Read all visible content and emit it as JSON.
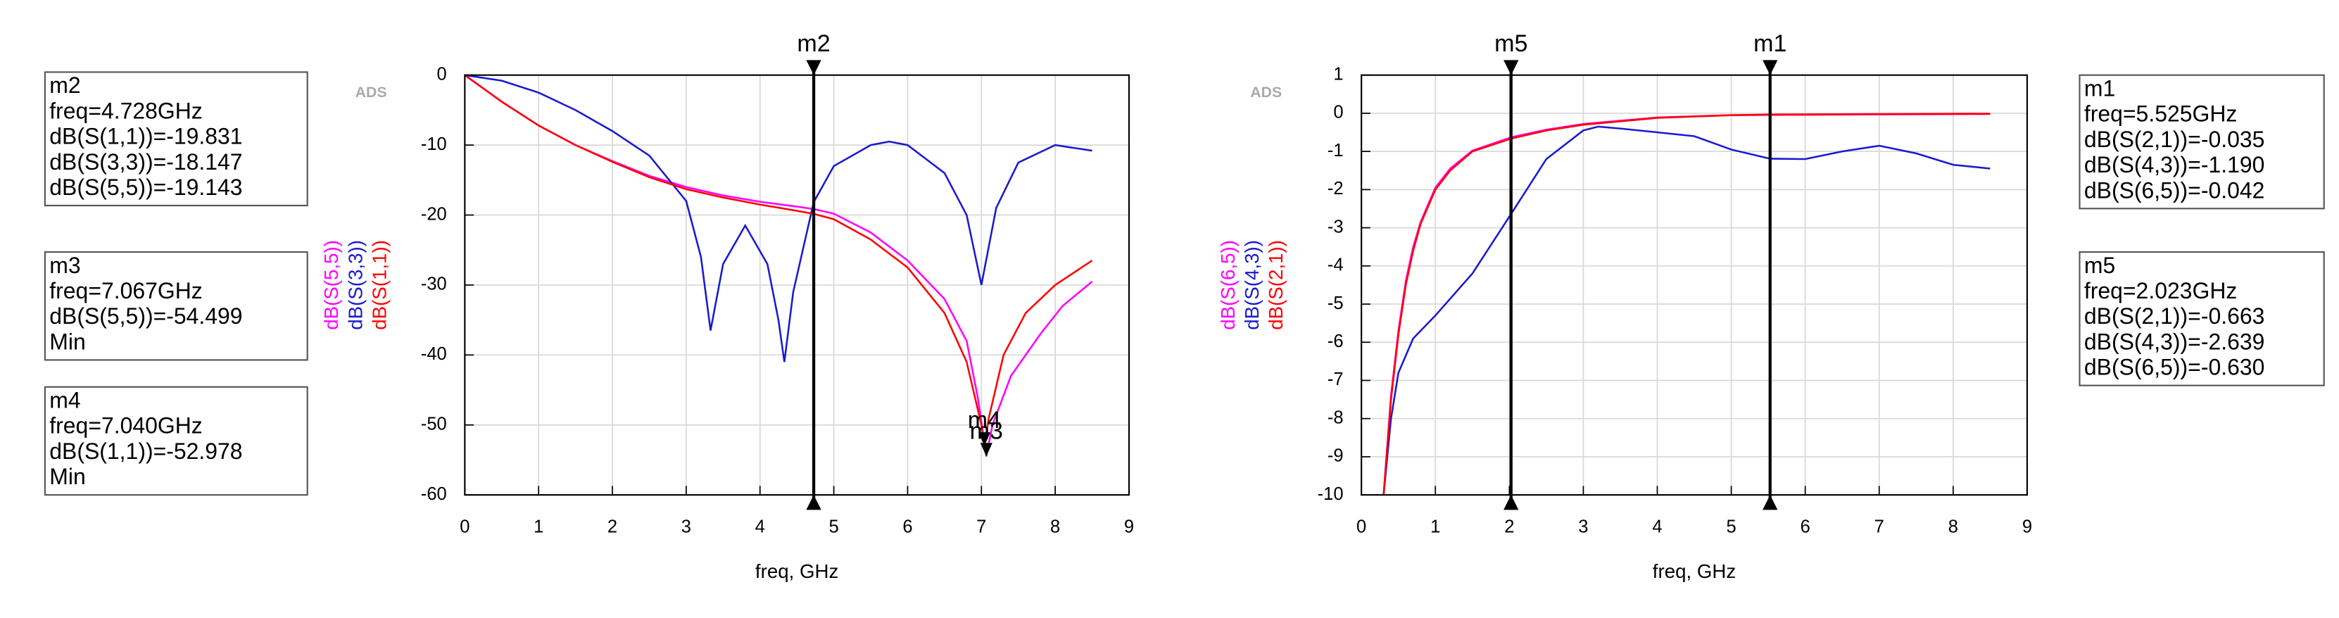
{
  "chart_data": [
    {
      "type": "line",
      "watermark": "ADS",
      "xlabel": "freq, GHz",
      "grid": true,
      "xlim": [
        0,
        9
      ],
      "xticks": [
        0,
        1,
        2,
        3,
        4,
        5,
        6,
        7,
        8,
        9
      ],
      "ylim": [
        -60,
        0
      ],
      "yticks": [
        0,
        -10,
        -20,
        -30,
        -40,
        -50,
        -60
      ],
      "series": [
        {
          "name": "dB(S(5,5))",
          "color": "#ff00ff",
          "x": [
            0,
            0.5,
            1,
            1.5,
            2,
            2.5,
            3,
            3.5,
            4,
            4.5,
            4.728,
            5,
            5.5,
            6,
            6.5,
            6.8,
            6.95,
            7.067,
            7.15,
            7.4,
            7.8,
            8.1,
            8.5
          ],
          "values": [
            0,
            -3.8,
            -7.2,
            -10,
            -12.3,
            -14.4,
            -16,
            -17.2,
            -18.1,
            -18.8,
            -19.143,
            -19.8,
            -22.5,
            -26.5,
            -32,
            -38,
            -46,
            -54.499,
            -50,
            -43,
            -37,
            -33,
            -29.5
          ]
        },
        {
          "name": "dB(S(3,3))",
          "color": "#1a1ad0",
          "x": [
            0,
            0.5,
            1,
            1.5,
            2,
            2.5,
            3,
            3.2,
            3.33,
            3.5,
            3.8,
            4.1,
            4.25,
            4.33,
            4.45,
            4.728,
            5,
            5.5,
            5.75,
            6,
            6.5,
            6.8,
            7.0,
            7.2,
            7.5,
            8,
            8.5
          ],
          "values": [
            0,
            -0.8,
            -2.5,
            -5,
            -8,
            -11.5,
            -18,
            -26,
            -36.5,
            -27,
            -21.5,
            -27,
            -35,
            -41,
            -31,
            -18.147,
            -13,
            -10,
            -9.5,
            -10,
            -14,
            -20,
            -30,
            -19,
            -12.5,
            -10,
            -10.8
          ]
        },
        {
          "name": "dB(S(1,1))",
          "color": "#ff0000",
          "x": [
            0,
            0.5,
            1,
            1.5,
            2,
            2.5,
            3,
            3.5,
            4,
            4.5,
            4.728,
            5,
            5.5,
            6,
            6.5,
            6.8,
            7.0,
            7.04,
            7.1,
            7.3,
            7.6,
            8,
            8.5
          ],
          "values": [
            0,
            -3.8,
            -7.2,
            -10,
            -12.4,
            -14.6,
            -16.3,
            -17.5,
            -18.5,
            -19.4,
            -19.831,
            -20.6,
            -23.5,
            -27.5,
            -34,
            -41,
            -50,
            -52.978,
            -49,
            -40,
            -34,
            -30,
            -26.5
          ]
        }
      ],
      "markers": [
        {
          "name": "m2",
          "x": 4.728,
          "lines": [
            "freq=4.728GHz",
            "dB(S(1,1))=-19.831",
            "dB(S(3,3))=-18.147",
            "dB(S(5,5))=-19.143"
          ]
        },
        {
          "name": "m3",
          "x": 7.067,
          "y": -54.499,
          "lines": [
            "freq=7.067GHz",
            "dB(S(5,5))=-54.499",
            "Min"
          ]
        },
        {
          "name": "m4",
          "x": 7.04,
          "y": -52.978,
          "lines": [
            "freq=7.040GHz",
            "dB(S(1,1))=-52.978",
            "Min"
          ]
        }
      ]
    },
    {
      "type": "line",
      "watermark": "ADS",
      "xlabel": "freq, GHz",
      "grid": true,
      "xlim": [
        0,
        9
      ],
      "xticks": [
        0,
        1,
        2,
        3,
        4,
        5,
        6,
        7,
        8,
        9
      ],
      "ylim": [
        -10,
        1
      ],
      "yticks": [
        1,
        0,
        -1,
        -2,
        -3,
        -4,
        -5,
        -6,
        -7,
        -8,
        -9,
        -10
      ],
      "series": [
        {
          "name": "dB(S(6,5))",
          "color": "#ff00ff",
          "x": [
            0.3,
            0.4,
            0.5,
            0.6,
            0.7,
            0.8,
            1,
            1.2,
            1.5,
            2.023,
            2.5,
            3,
            4,
            5,
            5.525,
            6,
            7,
            8.5
          ],
          "values": [
            -10,
            -7.4,
            -5.7,
            -4.4,
            -3.5,
            -2.85,
            -1.95,
            -1.45,
            -0.98,
            -0.63,
            -0.43,
            -0.28,
            -0.11,
            -0.05,
            -0.042,
            -0.04,
            -0.03,
            -0.02
          ]
        },
        {
          "name": "dB(S(4,3))",
          "color": "#1a1ad0",
          "x": [
            0.3,
            0.4,
            0.5,
            0.7,
            1,
            1.5,
            2.023,
            2.5,
            3,
            3.2,
            3.5,
            4,
            4.5,
            5,
            5.525,
            6,
            6.5,
            7,
            7.5,
            8,
            8.5
          ],
          "values": [
            -10,
            -8,
            -6.8,
            -5.9,
            -5.3,
            -4.2,
            -2.639,
            -1.2,
            -0.45,
            -0.35,
            -0.4,
            -0.5,
            -0.6,
            -0.95,
            -1.19,
            -1.2,
            -1.0,
            -0.85,
            -1.05,
            -1.35,
            -1.45
          ]
        },
        {
          "name": "dB(S(2,1))",
          "color": "#ff0000",
          "x": [
            0.3,
            0.4,
            0.5,
            0.6,
            0.7,
            0.8,
            1,
            1.2,
            1.5,
            2.023,
            2.5,
            3,
            4,
            5,
            5.525,
            6,
            7,
            8.5
          ],
          "values": [
            -10,
            -7.5,
            -5.8,
            -4.5,
            -3.6,
            -2.9,
            -2.0,
            -1.5,
            -1.0,
            -0.663,
            -0.45,
            -0.3,
            -0.12,
            -0.05,
            -0.035,
            -0.03,
            -0.02,
            -0.01
          ]
        }
      ],
      "markers": [
        {
          "name": "m1",
          "x": 5.525,
          "lines": [
            "freq=5.525GHz",
            "dB(S(2,1))=-0.035",
            "dB(S(4,3))=-1.190",
            "dB(S(6,5))=-0.042"
          ]
        },
        {
          "name": "m5",
          "x": 2.023,
          "lines": [
            "freq=2.023GHz",
            "dB(S(2,1))=-0.663",
            "dB(S(4,3))=-2.639",
            "dB(S(6,5))=-0.630"
          ]
        }
      ]
    }
  ]
}
